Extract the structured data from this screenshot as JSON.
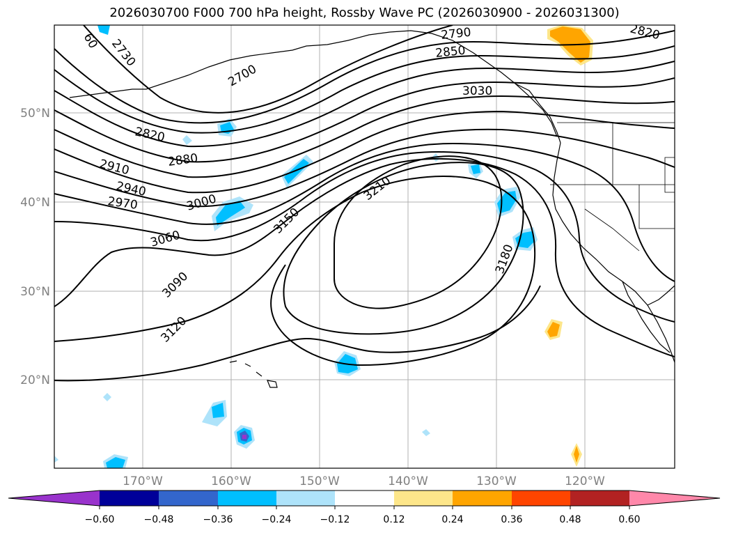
{
  "title": "2026030700 F000 700 hPa height, Rossby Wave PC (2026030900 - 2026031300)",
  "lat_labels": [
    "50°N",
    "40°N",
    "30°N",
    "20°N"
  ],
  "lon_labels": [
    "170°W",
    "160°W",
    "150°W",
    "140°W",
    "130°W",
    "120°W"
  ],
  "contour_labels": [
    "60",
    "2730",
    "2700",
    "2820",
    "2880",
    "2910",
    "2940",
    "2970",
    "3000",
    "3060",
    "3090",
    "3120",
    "3150",
    "3210",
    "3180",
    "2790",
    "2850",
    "3030",
    "2820"
  ],
  "colorbar": {
    "ticks": [
      "−0.60",
      "−0.48",
      "−0.36",
      "−0.24",
      "−0.12",
      "0.12",
      "0.24",
      "0.36",
      "0.48",
      "0.60"
    ],
    "colors": [
      "#9933cc",
      "#000099",
      "#3366cc",
      "#00bfff",
      "#aee3fa",
      "#ffffff",
      "#fde68a",
      "#ffa500",
      "#ff4500",
      "#b22222",
      "#ff88aa"
    ]
  }
}
